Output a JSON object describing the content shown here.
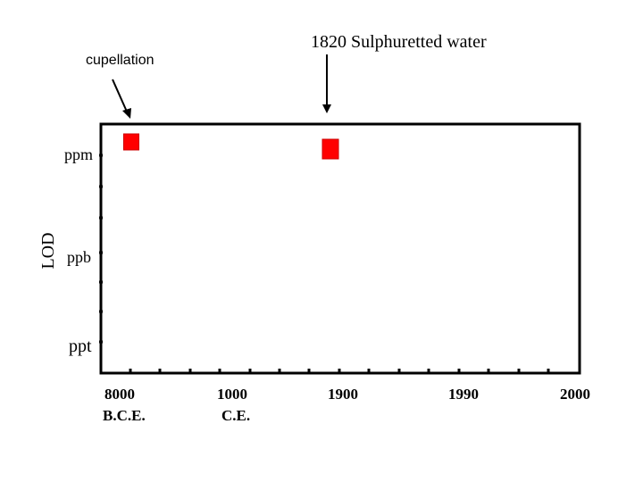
{
  "chart_data": {
    "type": "scatter",
    "title": "",
    "ylabel": "LOD",
    "xlabel": "",
    "x_ticks": [
      {
        "line1": "8000",
        "line2": "B.C.E."
      },
      {
        "line1": "1000",
        "line2": "C.E."
      },
      {
        "line1": "1900",
        "line2": ""
      },
      {
        "line1": "1990",
        "line2": ""
      },
      {
        "line1": "2000",
        "line2": ""
      }
    ],
    "y_ticks": [
      "ppm",
      "ppb",
      "ppt"
    ],
    "points": [
      {
        "name": "cupellation",
        "x_tick_index": 0.0,
        "y_level": "ppm",
        "color": "#ff0000",
        "annotation": "cupellation"
      },
      {
        "name": "sulphuretted-water",
        "x_tick_index": 2.0,
        "y_level": "ppm",
        "color": "#ff0000",
        "annotation": "1820 Sulphuretted water"
      }
    ]
  },
  "colors": {
    "marker": "#ff0000",
    "marker_edge": "#cc0000",
    "axis": "#000000"
  }
}
